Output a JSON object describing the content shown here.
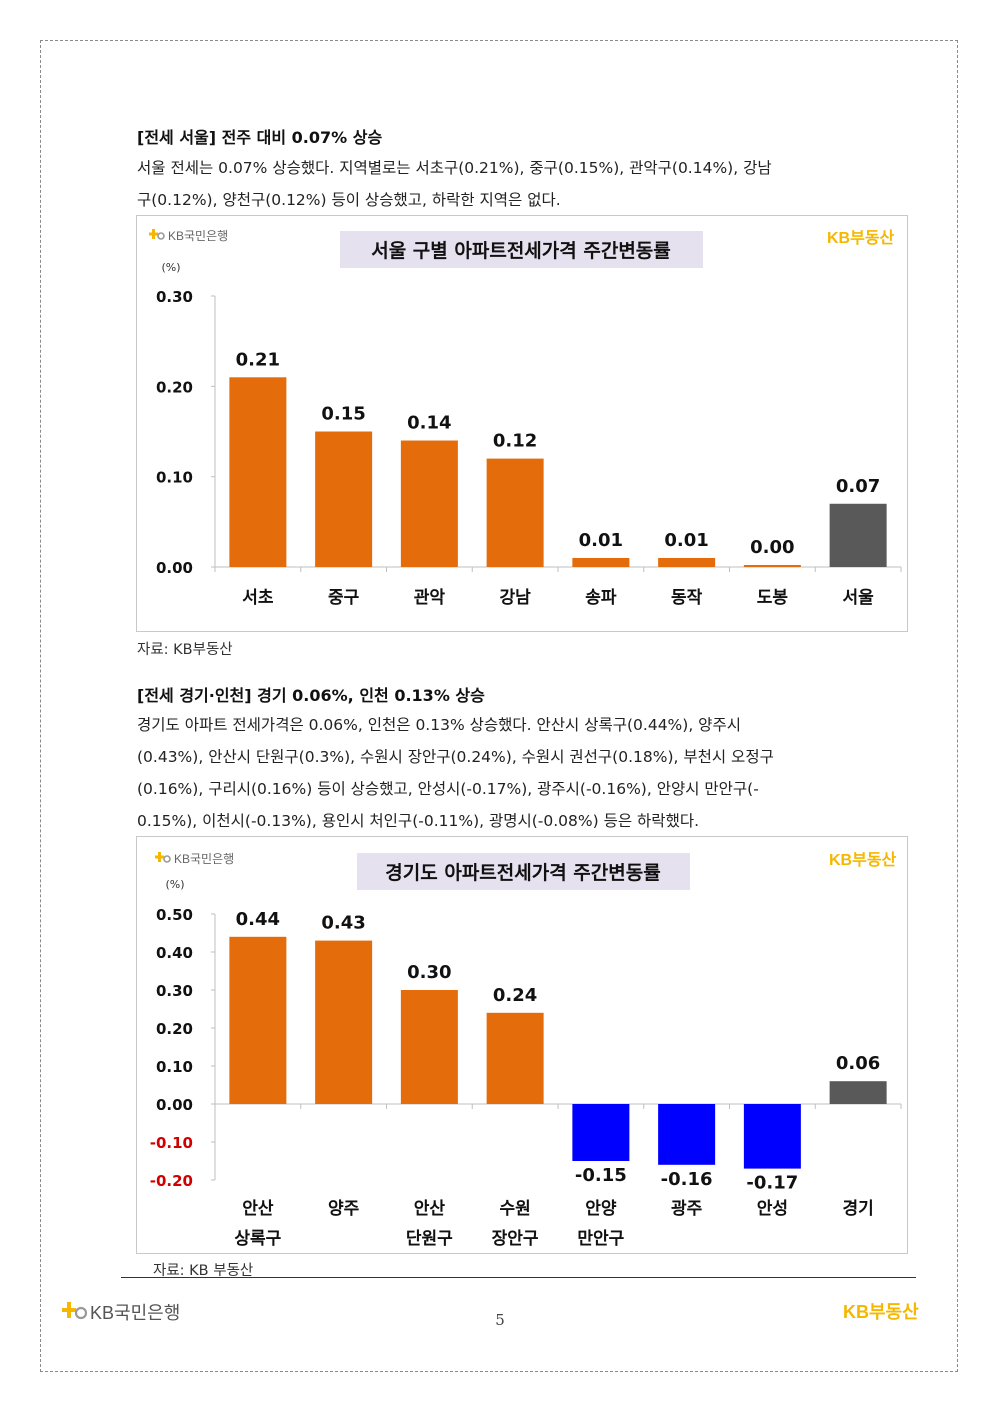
{
  "section1": {
    "title": "[전세 서울] 전주 대비 0.07% 상승",
    "para_line1": "서울 전세는 0.07% 상승했다. 지역별로는 서초구(0.21%), 중구(0.15%), 관악구(0.14%), 강남",
    "para_line2": "구(0.12%), 양천구(0.12%) 등이 상승했고, 하락한 지역은 없다.",
    "source": "자료: KB부동산"
  },
  "section2": {
    "title": "[전세 경기·인천] 경기 0.06%, 인천 0.13% 상승",
    "para_line1": "경기도 아파트 전세가격은 0.06%, 인천은 0.13% 상승했다. 안산시 상록구(0.44%), 양주시",
    "para_line2": "(0.43%), 안산시 단원구(0.3%), 수원시 장안구(0.24%), 수원시 권선구(0.18%), 부천시 오정구",
    "para_line3": "(0.16%), 구리시(0.16%) 등이 상승했고, 안성시(-0.17%), 광주시(-0.16%), 안양시 만안구(-",
    "para_line4": "0.15%), 이천시(-0.13%), 용인시 처인구(-0.11%), 광명시(-0.08%) 등은 하락했다.",
    "source": "자료: KB 부동산"
  },
  "brand": {
    "bank_name": "KB국민은행",
    "realestate_name": "KB부동산",
    "kb_mark": "KB"
  },
  "page_number": "5",
  "colors": {
    "rise": "#E46C0A",
    "fall": "#0000FF",
    "total": "#595959",
    "negative_tick": "#D00000",
    "title_bg": "#E6E1EF",
    "brand_yellow": "#F5B700"
  },
  "chart_data": [
    {
      "type": "bar",
      "title": "서울 구별 아파트전세가격 주간변동률",
      "unit_label": "(%)",
      "categories": [
        "서초",
        "중구",
        "관악",
        "강남",
        "송파",
        "동작",
        "도봉",
        "서울"
      ],
      "values": [
        0.21,
        0.15,
        0.14,
        0.12,
        0.01,
        0.01,
        0.0,
        0.07
      ],
      "value_labels": [
        "0.21",
        "0.15",
        "0.14",
        "0.12",
        "0.01",
        "0.01",
        "0.00",
        "0.07"
      ],
      "bar_colors": [
        "rise",
        "rise",
        "rise",
        "rise",
        "rise",
        "rise",
        "rise",
        "total"
      ],
      "ylim": [
        0,
        0.3
      ],
      "yticks": [
        "0.00",
        "0.10",
        "0.20",
        "0.30"
      ],
      "ytick_values": [
        0,
        0.1,
        0.2,
        0.3
      ],
      "grid": false,
      "legend": "none"
    },
    {
      "type": "bar",
      "title": "경기도 아파트전세가격 주간변동률",
      "unit_label": "(%)",
      "categories": [
        [
          "안산",
          "상록구"
        ],
        [
          "양주"
        ],
        [
          "안산",
          "단원구"
        ],
        [
          "수원",
          "장안구"
        ],
        [
          "안양",
          "만안구"
        ],
        [
          "광주"
        ],
        [
          "안성"
        ],
        [
          "경기"
        ]
      ],
      "values": [
        0.44,
        0.43,
        0.3,
        0.24,
        -0.15,
        -0.16,
        -0.17,
        0.06
      ],
      "value_labels": [
        "0.44",
        "0.43",
        "0.30",
        "0.24",
        "-0.15",
        "-0.16",
        "-0.17",
        "0.06"
      ],
      "bar_colors": [
        "rise",
        "rise",
        "rise",
        "rise",
        "fall",
        "fall",
        "fall",
        "total"
      ],
      "ylim": [
        -0.2,
        0.5
      ],
      "yticks": [
        "-0.20",
        "-0.10",
        "0.00",
        "0.10",
        "0.20",
        "0.30",
        "0.40",
        "0.50"
      ],
      "ytick_values": [
        -0.2,
        -0.1,
        0,
        0.1,
        0.2,
        0.3,
        0.4,
        0.5
      ],
      "grid": false,
      "legend": "none"
    }
  ]
}
